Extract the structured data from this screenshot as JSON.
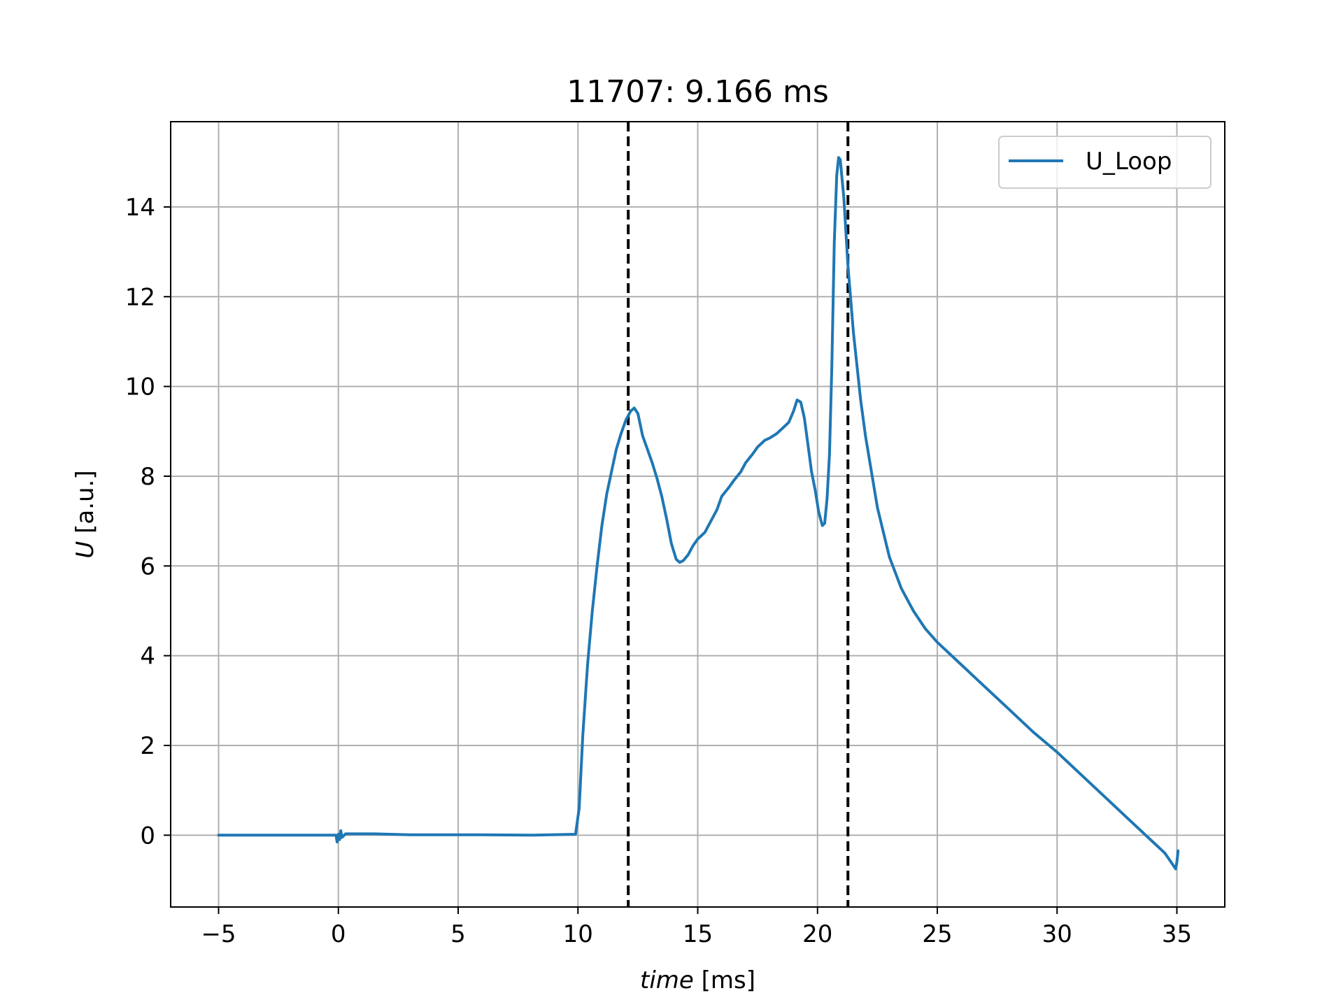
{
  "chart_data": {
    "type": "line",
    "title": "11707: 9.166 ms",
    "xlabel_italic": "time",
    "xlabel_unit": " [ms]",
    "ylabel_italic": "U",
    "ylabel_unit": " [a.u.]",
    "xlim": [
      -7,
      37
    ],
    "ylim": [
      -1.6,
      15.9
    ],
    "xticks": [
      -5,
      0,
      5,
      10,
      15,
      20,
      25,
      30,
      35
    ],
    "xtick_labels": [
      "−5",
      "0",
      "5",
      "10",
      "15",
      "20",
      "25",
      "30",
      "35"
    ],
    "yticks": [
      0,
      2,
      4,
      6,
      8,
      10,
      12,
      14
    ],
    "ytick_labels": [
      "0",
      "2",
      "4",
      "6",
      "8",
      "10",
      "12",
      "14"
    ],
    "grid": true,
    "legend_position": "top-right",
    "vlines": [
      12.1,
      21.27
    ],
    "series": [
      {
        "name": "U_Loop",
        "color": "#1f77b4",
        "points": [
          [
            -5.0,
            0.0
          ],
          [
            -2.0,
            0.0
          ],
          [
            -0.1,
            0.0
          ],
          [
            -0.05,
            -0.15
          ],
          [
            0.0,
            0.02
          ],
          [
            0.05,
            -0.1
          ],
          [
            0.1,
            0.1
          ],
          [
            0.15,
            -0.05
          ],
          [
            0.3,
            0.03
          ],
          [
            1.5,
            0.03
          ],
          [
            3.0,
            0.01
          ],
          [
            6.0,
            0.01
          ],
          [
            8.0,
            0.0
          ],
          [
            9.9,
            0.02
          ],
          [
            10.05,
            0.6
          ],
          [
            10.2,
            2.2
          ],
          [
            10.4,
            3.8
          ],
          [
            10.6,
            5.0
          ],
          [
            10.8,
            6.0
          ],
          [
            11.0,
            6.9
          ],
          [
            11.2,
            7.6
          ],
          [
            11.4,
            8.1
          ],
          [
            11.6,
            8.6
          ],
          [
            11.8,
            8.95
          ],
          [
            12.0,
            9.25
          ],
          [
            12.2,
            9.45
          ],
          [
            12.35,
            9.52
          ],
          [
            12.5,
            9.4
          ],
          [
            12.7,
            8.9
          ],
          [
            12.9,
            8.6
          ],
          [
            13.1,
            8.3
          ],
          [
            13.3,
            7.95
          ],
          [
            13.5,
            7.55
          ],
          [
            13.7,
            7.05
          ],
          [
            13.9,
            6.5
          ],
          [
            14.1,
            6.15
          ],
          [
            14.25,
            6.08
          ],
          [
            14.4,
            6.12
          ],
          [
            14.6,
            6.25
          ],
          [
            14.8,
            6.45
          ],
          [
            15.0,
            6.6
          ],
          [
            15.3,
            6.75
          ],
          [
            15.5,
            6.95
          ],
          [
            15.8,
            7.25
          ],
          [
            16.0,
            7.55
          ],
          [
            16.3,
            7.75
          ],
          [
            16.5,
            7.9
          ],
          [
            16.8,
            8.1
          ],
          [
            17.0,
            8.3
          ],
          [
            17.3,
            8.5
          ],
          [
            17.5,
            8.65
          ],
          [
            17.8,
            8.8
          ],
          [
            18.0,
            8.85
          ],
          [
            18.3,
            8.95
          ],
          [
            18.5,
            9.05
          ],
          [
            18.8,
            9.2
          ],
          [
            19.0,
            9.45
          ],
          [
            19.15,
            9.7
          ],
          [
            19.3,
            9.65
          ],
          [
            19.45,
            9.3
          ],
          [
            19.6,
            8.7
          ],
          [
            19.75,
            8.1
          ],
          [
            19.9,
            7.7
          ],
          [
            20.05,
            7.2
          ],
          [
            20.2,
            6.9
          ],
          [
            20.3,
            6.95
          ],
          [
            20.4,
            7.5
          ],
          [
            20.5,
            8.5
          ],
          [
            20.6,
            10.5
          ],
          [
            20.7,
            13.2
          ],
          [
            20.8,
            14.7
          ],
          [
            20.88,
            15.1
          ],
          [
            20.95,
            15.05
          ],
          [
            21.1,
            14.2
          ],
          [
            21.27,
            12.7
          ],
          [
            21.5,
            11.2
          ],
          [
            21.8,
            9.7
          ],
          [
            22.0,
            8.9
          ],
          [
            22.5,
            7.3
          ],
          [
            23.0,
            6.2
          ],
          [
            23.5,
            5.5
          ],
          [
            24.0,
            5.0
          ],
          [
            24.5,
            4.6
          ],
          [
            25.0,
            4.3
          ],
          [
            26.0,
            3.8
          ],
          [
            27.0,
            3.3
          ],
          [
            28.0,
            2.8
          ],
          [
            29.0,
            2.3
          ],
          [
            30.0,
            1.85
          ],
          [
            31.0,
            1.35
          ],
          [
            32.0,
            0.85
          ],
          [
            33.0,
            0.35
          ],
          [
            34.0,
            -0.15
          ],
          [
            34.5,
            -0.4
          ],
          [
            34.95,
            -0.75
          ],
          [
            35.0,
            -0.6
          ],
          [
            35.05,
            -0.35
          ]
        ]
      }
    ]
  }
}
